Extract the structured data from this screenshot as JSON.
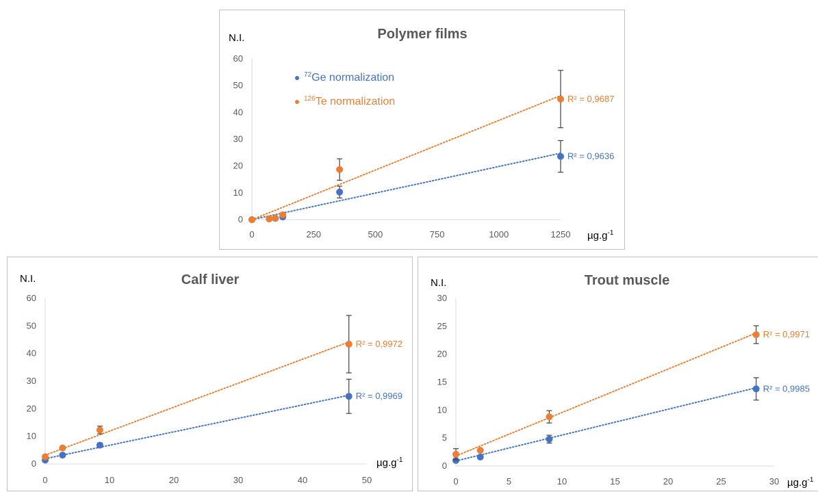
{
  "colors": {
    "series1": "#4472c4",
    "series2": "#ed7d31",
    "axis": "#d9d9d9",
    "text": "#595959",
    "error": "#404040"
  },
  "legend": {
    "items": [
      {
        "sup": "72",
        "label": "Ge normalization"
      },
      {
        "sup": "126",
        "label": "Te normalization"
      }
    ]
  },
  "chart_data": [
    {
      "type": "scatter",
      "title": "Polymer films",
      "ylabel": "N.I.",
      "xlabel": "µg.g",
      "xlabel_sup": "-1",
      "xlim": [
        0,
        1250
      ],
      "ylim": [
        0,
        60
      ],
      "x_ticks": [
        0,
        250,
        500,
        750,
        1000,
        1250
      ],
      "y_ticks": [
        0,
        10,
        20,
        30,
        40,
        50,
        60
      ],
      "legend_position": "upper-left",
      "series": [
        {
          "points": [
            {
              "x": 0,
              "y": 0
            },
            {
              "x": 70,
              "y": 0.3
            },
            {
              "x": 95,
              "y": 0.5
            },
            {
              "x": 125,
              "y": 1.0,
              "err": 0.5
            },
            {
              "x": 355,
              "y": 10.3,
              "err": 2.2
            },
            {
              "x": 1250,
              "y": 23.6,
              "err": 5.9
            }
          ],
          "trend": [
            0,
            24.8
          ],
          "r2": "R² = 0,9636"
        },
        {
          "points": [
            {
              "x": 0,
              "y": 0
            },
            {
              "x": 70,
              "y": 0.3
            },
            {
              "x": 95,
              "y": 0.6
            },
            {
              "x": 125,
              "y": 1.8,
              "err": 0.6
            },
            {
              "x": 355,
              "y": 18.7,
              "err": 4.0
            },
            {
              "x": 1250,
              "y": 45.0,
              "err": 10.7
            }
          ],
          "trend": [
            0,
            46.3
          ],
          "r2": "R² = 0,9687"
        }
      ]
    },
    {
      "type": "scatter",
      "title": "Calf liver",
      "ylabel": "N.I.",
      "xlabel": "µg.g",
      "xlabel_sup": "-1",
      "xlim": [
        0,
        50
      ],
      "ylim": [
        0,
        60
      ],
      "x_ticks": [
        0,
        10,
        20,
        30,
        40,
        50
      ],
      "y_ticks": [
        0,
        10,
        20,
        30,
        40,
        50,
        60
      ],
      "series": [
        {
          "points": [
            {
              "x": 0,
              "y": 1.4
            },
            {
              "x": 2.7,
              "y": 3.2
            },
            {
              "x": 8.5,
              "y": 6.8,
              "err": 0.8
            },
            {
              "x": 47.2,
              "y": 24.5,
              "err": 6.2
            }
          ],
          "trend": [
            1.9,
            24.9
          ],
          "r2": "R² = 0,9969"
        },
        {
          "points": [
            {
              "x": 0,
              "y": 2.6
            },
            {
              "x": 2.7,
              "y": 5.8
            },
            {
              "x": 8.5,
              "y": 12.3,
              "err": 1.4
            },
            {
              "x": 47.2,
              "y": 43.4,
              "err": 10.4
            }
          ],
          "trend": [
            3.2,
            44.2
          ],
          "r2": "R² = 0,9972"
        }
      ]
    },
    {
      "type": "scatter",
      "title": "Trout muscle",
      "ylabel": "N.I.",
      "xlabel": "µg.g",
      "xlabel_sup": "-1",
      "xlim": [
        0,
        30
      ],
      "ylim": [
        0,
        30
      ],
      "x_ticks": [
        0,
        5,
        10,
        15,
        20,
        25,
        30
      ],
      "y_ticks": [
        0,
        5,
        10,
        15,
        20,
        25,
        30
      ],
      "series": [
        {
          "points": [
            {
              "x": 0,
              "y": 1.0
            },
            {
              "x": 2.3,
              "y": 1.6
            },
            {
              "x": 8.8,
              "y": 4.8,
              "err": 0.7
            },
            {
              "x": 28.3,
              "y": 13.8,
              "err": 2.0
            }
          ],
          "trend": [
            0.9,
            14.0
          ],
          "r2": "R² = 0,9985"
        },
        {
          "points": [
            {
              "x": 0,
              "y": 2.1,
              "err": 1.0
            },
            {
              "x": 2.3,
              "y": 2.8
            },
            {
              "x": 8.8,
              "y": 8.8,
              "err": 1.1
            },
            {
              "x": 28.3,
              "y": 23.5,
              "err": 1.6
            }
          ],
          "trend": [
            1.8,
            23.8
          ],
          "r2": "R² = 0,9971"
        }
      ]
    }
  ]
}
